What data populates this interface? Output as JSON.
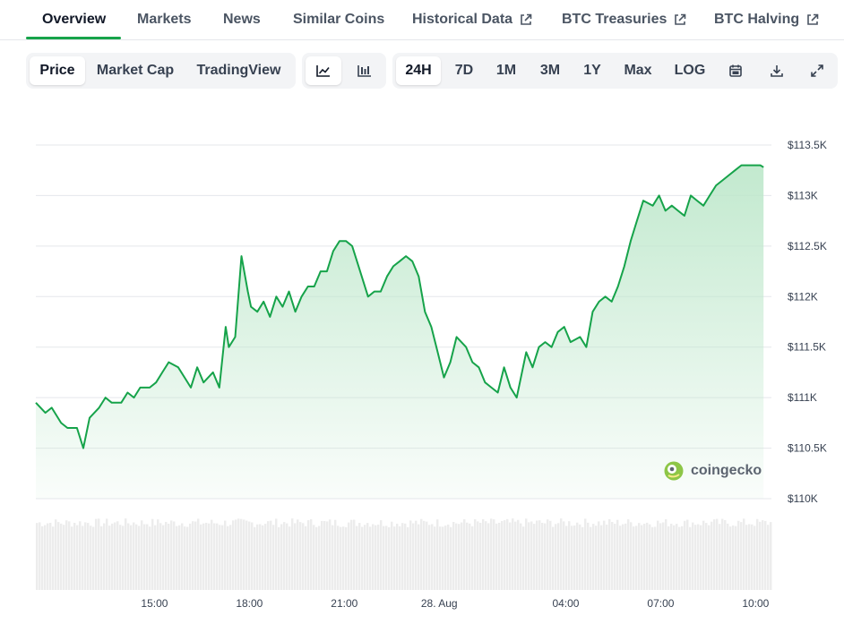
{
  "tabs": [
    {
      "label": "Overview",
      "active": true,
      "external": false
    },
    {
      "label": "Markets",
      "active": false,
      "external": false
    },
    {
      "label": "News",
      "active": false,
      "external": false
    },
    {
      "label": "Similar Coins",
      "active": false,
      "external": false
    },
    {
      "label": "Historical Data",
      "active": false,
      "external": true
    },
    {
      "label": "BTC Treasuries",
      "active": false,
      "external": true
    },
    {
      "label": "BTC Halving",
      "active": false,
      "external": true
    }
  ],
  "chart_mode": {
    "items": [
      "Price",
      "Market Cap",
      "TradingView"
    ],
    "selected": "Price"
  },
  "chart_style": {
    "items": [
      "line-chart-icon",
      "candlestick-chart-icon"
    ],
    "selected": "line-chart-icon"
  },
  "ranges": {
    "items": [
      "24H",
      "7D",
      "1M",
      "3M",
      "1Y",
      "Max",
      "LOG"
    ],
    "selected": "24H"
  },
  "tools": [
    "calendar-icon",
    "download-icon",
    "expand-icon"
  ],
  "watermark": "coingecko",
  "colors": {
    "line": "#16a34a",
    "area_top": "#bfe8cc",
    "accent": "#16a34a"
  },
  "chart_data": {
    "type": "area",
    "title": "",
    "xlabel": "",
    "ylabel": "",
    "ylim": [
      110000,
      113500
    ],
    "y_ticks": [
      "$110K",
      "$110.5K",
      "$111K",
      "$111.5K",
      "$112K",
      "$112.5K",
      "$113K",
      "$113.5K"
    ],
    "y_tick_values": [
      110000,
      110500,
      111000,
      111500,
      112000,
      112500,
      113000,
      113500
    ],
    "x_ticks": [
      "15:00",
      "18:00",
      "21:00",
      "28. Aug",
      "04:00",
      "07:00",
      "10:00"
    ],
    "x_tick_hours": [
      3.75,
      6.75,
      9.75,
      12.75,
      16.75,
      19.75,
      22.75
    ],
    "grid": true,
    "series": [
      {
        "x_hours": [
          0,
          0.3,
          0.5,
          0.8,
          1.0,
          1.3,
          1.5,
          1.7,
          2.0,
          2.2,
          2.4,
          2.7,
          2.9,
          3.1,
          3.3,
          3.6,
          3.8,
          4.0,
          4.2,
          4.5,
          4.7,
          4.9,
          5.1,
          5.3,
          5.6,
          5.8,
          6.0,
          6.1,
          6.3,
          6.5,
          6.7,
          6.8,
          7.0,
          7.2,
          7.4,
          7.6,
          7.8,
          8.0,
          8.2,
          8.4,
          8.6,
          8.8,
          9.0,
          9.2,
          9.4,
          9.6,
          9.8,
          10.0,
          10.2,
          10.5,
          10.7,
          10.9,
          11.1,
          11.3,
          11.5,
          11.7,
          11.9,
          12.1,
          12.3,
          12.5,
          12.7,
          12.9,
          13.1,
          13.3,
          13.6,
          13.8,
          14.0,
          14.2,
          14.4,
          14.6,
          14.8,
          15.0,
          15.2,
          15.5,
          15.7,
          15.9,
          16.1,
          16.3,
          16.5,
          16.7,
          16.9,
          17.2,
          17.4,
          17.6,
          17.8,
          18.0,
          18.2,
          18.4,
          18.6,
          18.8,
          19.0,
          19.2,
          19.5,
          19.7,
          19.9,
          20.1,
          20.3,
          20.5,
          20.7,
          20.9,
          21.1,
          21.3,
          21.5,
          21.7,
          21.9,
          22.1,
          22.3,
          22.5,
          22.7,
          22.9,
          23.0
        ],
        "values": [
          110950,
          110850,
          110900,
          110750,
          110700,
          110700,
          110500,
          110800,
          110900,
          111000,
          110950,
          110950,
          111050,
          111000,
          111100,
          111100,
          111150,
          111250,
          111350,
          111300,
          111200,
          111100,
          111300,
          111150,
          111250,
          111100,
          111700,
          111500,
          111600,
          112400,
          112050,
          111900,
          111850,
          111950,
          111800,
          112000,
          111900,
          112050,
          111850,
          112000,
          112100,
          112100,
          112250,
          112250,
          112450,
          112550,
          112550,
          112500,
          112300,
          112000,
          112050,
          112050,
          112200,
          112300,
          112350,
          112400,
          112350,
          112200,
          111850,
          111700,
          111450,
          111200,
          111350,
          111600,
          111500,
          111350,
          111300,
          111150,
          111100,
          111050,
          111300,
          111100,
          111000,
          111450,
          111300,
          111500,
          111550,
          111500,
          111650,
          111700,
          111550,
          111600,
          111500,
          111850,
          111950,
          112000,
          111950,
          112100,
          112300,
          112550,
          112750,
          112950,
          112900,
          113000,
          112850,
          112900,
          112850,
          112800,
          113000,
          112950,
          112900,
          113000,
          113100,
          113150,
          113200,
          113250,
          113300,
          113300,
          113300,
          113300,
          113280
        ]
      }
    ],
    "volume_present": true
  }
}
